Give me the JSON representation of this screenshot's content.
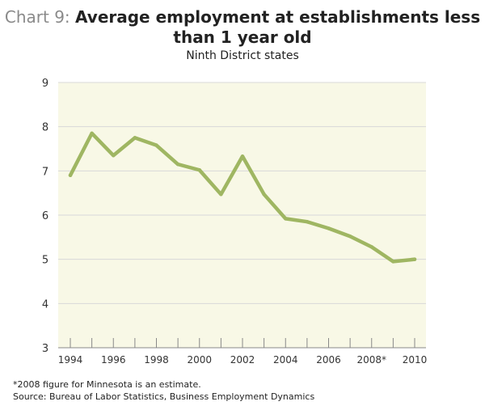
{
  "chart_data": {
    "type": "line",
    "title_prefix": "Chart 9:",
    "title": "Average employment at establishments less than 1 year old",
    "title_line1": "Average employment at establishments less",
    "title_line2": "than 1 year old",
    "subtitle": "Ninth District states",
    "x": [
      1994,
      1995,
      1996,
      1997,
      1998,
      1999,
      2000,
      2001,
      2002,
      2003,
      2004,
      2005,
      2006,
      2007,
      2008,
      2009,
      2010
    ],
    "series": [
      {
        "values": [
          6.9,
          7.85,
          7.35,
          7.75,
          7.58,
          7.15,
          7.02,
          6.47,
          7.33,
          6.47,
          5.92,
          5.85,
          5.7,
          5.52,
          5.28,
          4.95,
          5.0
        ]
      }
    ],
    "x_tick_labels": [
      "1994",
      "1996",
      "1998",
      "2000",
      "2002",
      "2004",
      "2006",
      "2008*",
      "2010"
    ],
    "y_ticks": [
      3,
      4,
      5,
      6,
      7,
      8,
      9
    ],
    "ylim": [
      3,
      9
    ],
    "xlim": [
      1994,
      2010
    ],
    "grid": true,
    "colors": {
      "line": "#9fb662",
      "plot_bg": "#f8f8e6",
      "grid": "#d9d9d9"
    }
  },
  "footnote": "*2008 figure for Minnesota is an estimate.",
  "source": "Source: Bureau of Labor Statistics, Business Employment Dynamics"
}
